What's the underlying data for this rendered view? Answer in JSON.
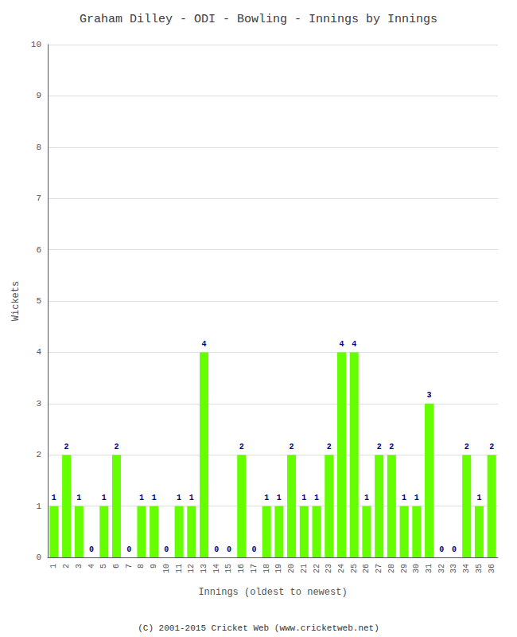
{
  "chart_data": {
    "type": "bar",
    "title": "Graham Dilley - ODI - Bowling - Innings by Innings",
    "x_label": "Innings (oldest to newest)",
    "y_label": "Wickets",
    "categories": [
      1,
      2,
      3,
      4,
      5,
      6,
      7,
      8,
      9,
      10,
      11,
      12,
      13,
      14,
      15,
      16,
      17,
      18,
      19,
      20,
      21,
      22,
      23,
      24,
      25,
      26,
      27,
      28,
      29,
      30,
      31,
      32,
      33,
      34,
      35,
      36
    ],
    "values": [
      1,
      2,
      1,
      0,
      1,
      2,
      0,
      1,
      1,
      0,
      1,
      1,
      4,
      0,
      0,
      2,
      0,
      1,
      1,
      2,
      1,
      1,
      2,
      4,
      4,
      1,
      2,
      2,
      1,
      1,
      3,
      0,
      0,
      2,
      1,
      2
    ],
    "color": "#66ff00",
    "ylim": [
      0,
      10
    ],
    "yticks": [
      0,
      1,
      2,
      3,
      4,
      5,
      6,
      7,
      8,
      9,
      10
    ],
    "grid": true,
    "data_labels": true,
    "annotations": [
      "(C) 2001-2015 Cricket Web (www.cricketweb.net)"
    ]
  }
}
